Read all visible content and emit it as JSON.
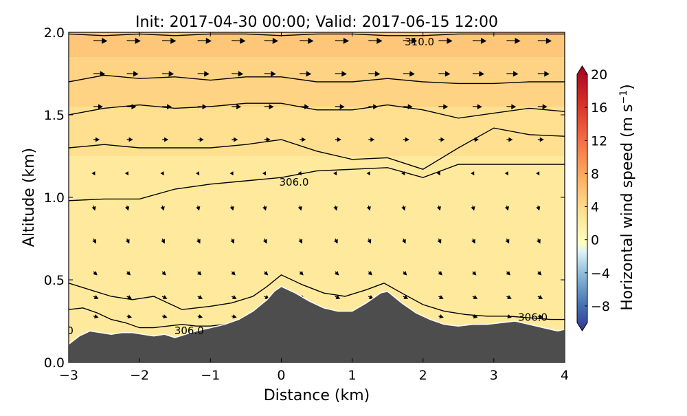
{
  "chart_data": {
    "type": "heatmap",
    "title": "Init: 2017-04-30 00:00; Valid: 2017-06-15 12:00",
    "xlabel": "Distance (km)",
    "ylabel": "Altitude (km)",
    "xlim": [
      -3,
      4
    ],
    "ylim": [
      0.0,
      2.0
    ],
    "xticks": [
      -3,
      -2,
      -1,
      0,
      1,
      2,
      3,
      4
    ],
    "yticks": [
      0.0,
      0.5,
      1.0,
      1.5,
      2.0
    ],
    "colorbar": {
      "label": "Horizontal wind speed (m s",
      "label_exponent": "−1",
      "label_close": ")",
      "range": [
        -10,
        20
      ],
      "ticks": [
        -8,
        -4,
        0,
        4,
        8,
        12,
        16,
        20
      ],
      "negative_color": "#313695",
      "zero_color": "#ffffbf",
      "positive_color": "#a50026"
    },
    "terrain": {
      "color": "#4d4d4d",
      "x": [
        -3.0,
        -2.85,
        -2.7,
        -2.55,
        -2.4,
        -2.25,
        -2.1,
        -1.95,
        -1.8,
        -1.65,
        -1.5,
        -1.35,
        -1.2,
        -1.0,
        -0.8,
        -0.6,
        -0.4,
        -0.2,
        -0.1,
        0.0,
        0.2,
        0.4,
        0.6,
        0.8,
        1.0,
        1.2,
        1.4,
        1.5,
        1.7,
        1.9,
        2.1,
        2.3,
        2.5,
        2.7,
        2.9,
        3.1,
        3.3,
        3.5,
        3.7,
        3.9,
        4.0
      ],
      "y": [
        0.11,
        0.16,
        0.19,
        0.18,
        0.17,
        0.18,
        0.18,
        0.17,
        0.16,
        0.17,
        0.15,
        0.17,
        0.19,
        0.21,
        0.23,
        0.26,
        0.31,
        0.38,
        0.43,
        0.46,
        0.42,
        0.37,
        0.33,
        0.31,
        0.31,
        0.36,
        0.42,
        0.43,
        0.36,
        0.3,
        0.26,
        0.23,
        0.22,
        0.23,
        0.23,
        0.24,
        0.25,
        0.23,
        0.21,
        0.19,
        0.2
      ]
    },
    "background_field": [
      {
        "y": [
          1.85,
          2.0
        ],
        "speed": 5.5
      },
      {
        "y": [
          1.55,
          1.85
        ],
        "speed": 4.5
      },
      {
        "y": [
          1.25,
          1.55
        ],
        "speed": 3.5
      },
      {
        "y": [
          0.9,
          1.25
        ],
        "speed": 2.5
      },
      {
        "y": [
          0.0,
          0.9
        ],
        "speed": 2.5
      }
    ],
    "potential_temperature_contours": [
      {
        "x": [
          -3,
          -2.5,
          -2,
          -1.5,
          -1,
          -0.5,
          0,
          0.5,
          1,
          1.5,
          2,
          2.5,
          3,
          3.5,
          4
        ],
        "y": [
          1.99,
          1.98,
          1.99,
          1.98,
          1.99,
          1.99,
          1.98,
          1.99,
          1.99,
          1.98,
          1.98,
          1.99,
          1.99,
          1.99,
          1.99
        ]
      },
      {
        "x": [
          -3,
          -2.5,
          -2,
          -1.5,
          -1,
          -0.5,
          0,
          0.5,
          1,
          1.5,
          2,
          2.5,
          3,
          3.5,
          4
        ],
        "y": [
          1.7,
          1.74,
          1.72,
          1.73,
          1.71,
          1.73,
          1.73,
          1.7,
          1.7,
          1.72,
          1.7,
          1.69,
          1.69,
          1.7,
          1.7
        ]
      },
      {
        "x": [
          -3,
          -2.5,
          -2,
          -1.5,
          -1,
          -0.5,
          0,
          0.5,
          1,
          1.5,
          2,
          2.5,
          3,
          3.5,
          4
        ],
        "y": [
          1.5,
          1.54,
          1.56,
          1.54,
          1.55,
          1.57,
          1.57,
          1.53,
          1.53,
          1.56,
          1.53,
          1.48,
          1.51,
          1.54,
          1.52
        ]
      },
      {
        "x": [
          -3,
          -2.5,
          -2,
          -1.5,
          -1,
          -0.5,
          0,
          0.5,
          1,
          1.5,
          2,
          2.5,
          3,
          3.5,
          4
        ],
        "y": [
          1.3,
          1.32,
          1.3,
          1.3,
          1.3,
          1.32,
          1.35,
          1.28,
          1.23,
          1.24,
          1.17,
          1.3,
          1.42,
          1.38,
          1.37
        ]
      },
      {
        "x": [
          -3,
          -2.5,
          -2,
          -1.5,
          -1,
          -0.5,
          0,
          0.5,
          1,
          1.5,
          2,
          2.5,
          3,
          3.5,
          4
        ],
        "y": [
          0.98,
          0.99,
          0.99,
          1.05,
          1.08,
          1.1,
          1.12,
          1.16,
          1.17,
          1.18,
          1.12,
          1.2,
          1.2,
          1.2,
          1.2
        ]
      },
      {
        "x": [
          -3,
          -2.7,
          -2.4,
          -2.1,
          -1.8,
          -1.6,
          -1.4,
          -1.2,
          -1.0,
          -0.7,
          -0.4,
          -0.2,
          0.0,
          0.3,
          0.6,
          0.9,
          1.2,
          1.45,
          1.7,
          2.0,
          2.3,
          2.6,
          2.9,
          3.2,
          3.5,
          3.8,
          4.0
        ],
        "y": [
          0.48,
          0.44,
          0.4,
          0.38,
          0.4,
          0.36,
          0.32,
          0.33,
          0.34,
          0.36,
          0.4,
          0.46,
          0.53,
          0.47,
          0.42,
          0.4,
          0.44,
          0.48,
          0.42,
          0.35,
          0.31,
          0.29,
          0.28,
          0.28,
          0.27,
          0.26,
          0.26
        ]
      },
      {
        "x": [
          -3,
          -2.8,
          -2.6,
          -2.4,
          -2.2,
          -2.0,
          -1.8,
          -1.6,
          -1.4,
          -1.2,
          -1.0,
          -0.8,
          -0.5
        ],
        "y": [
          0.32,
          0.33,
          0.3,
          0.26,
          0.24,
          0.21,
          0.21,
          0.22,
          0.23,
          0.22,
          0.22,
          0.23,
          0.25
        ]
      }
    ],
    "contour_labels": [
      {
        "text": "310.0",
        "x": 1.95,
        "y": 1.94
      },
      {
        "text": "306.0",
        "x": 0.18,
        "y": 1.09
      },
      {
        "text": "306.0",
        "x": -1.3,
        "y": 0.19
      },
      {
        "text": "306.0",
        "x": 3.55,
        "y": 0.27
      },
      {
        "text": "0",
        "x": -2.98,
        "y": 0.19
      }
    ],
    "wind_vectors": {
      "x": [
        -2.65,
        -2.18,
        -1.68,
        -1.18,
        -0.7,
        -0.24,
        0.26,
        0.76,
        1.23,
        1.72,
        2.22,
        2.7,
        3.18,
        3.62
      ],
      "rows": [
        {
          "y": 1.95,
          "u": 6,
          "w": -0.2
        },
        {
          "y": 1.75,
          "u": 5,
          "w": -0.2
        },
        {
          "y": 1.55,
          "u": 4,
          "w": -0.1
        },
        {
          "y": 1.35,
          "u": 2.5,
          "w": 0
        },
        {
          "y": 1.15,
          "u": 0.6,
          "w": -1
        },
        {
          "y": 0.95,
          "u": 0.6,
          "w": -2
        },
        {
          "y": 0.75,
          "u": 1,
          "w": -2
        },
        {
          "y": 0.55,
          "u": 1.5,
          "w": -1.5
        },
        {
          "y": 0.4,
          "u": 2,
          "w": -1
        },
        {
          "y": 0.28,
          "u": 2,
          "w": -0.5
        }
      ]
    }
  }
}
